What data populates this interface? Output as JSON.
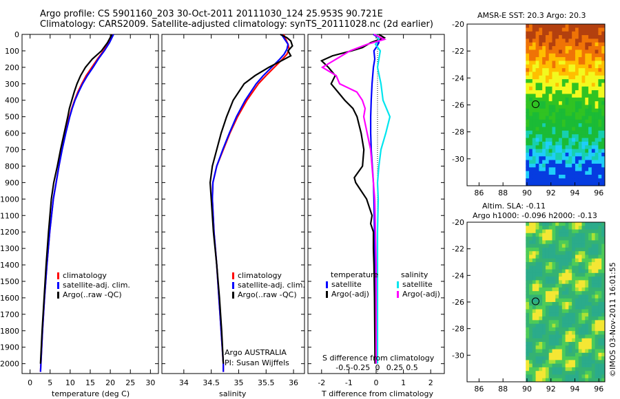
{
  "header": {
    "line1": "Argo profile: CS 5901160_203 30-Oct-2011 20111030_124 25.953S 90.721E",
    "line2": "Climatology: CARS2009. Satellite-adjusted climatology: synTS_20111028.nc (2d earlier)"
  },
  "colors": {
    "clim": "#ff0000",
    "sat": "#0000ff",
    "argo": "#000000",
    "sat_s": "#00e5ee",
    "argo_s": "#ff00ff"
  },
  "chart_data": [
    {
      "type": "line",
      "id": "temperature",
      "xlabel": "temperature (deg C)",
      "xlim": [
        -2,
        32
      ],
      "ylim": [
        2060,
        0
      ],
      "xticks": [
        0,
        5,
        10,
        15,
        20,
        25,
        30
      ],
      "yticks": [
        0,
        100,
        200,
        300,
        400,
        500,
        600,
        700,
        800,
        900,
        1000,
        1100,
        1200,
        1300,
        1400,
        1500,
        1600,
        1700,
        1800,
        1900,
        2000
      ],
      "legend": [
        "climatology",
        "satellite-adj. clim.",
        "Argo(..raw -QC)"
      ],
      "series": [
        {
          "name": "climatology",
          "color": "#ff0000",
          "depth": [
            0,
            50,
            100,
            150,
            200,
            250,
            300,
            350,
            400,
            450,
            500,
            600,
            700,
            800,
            900,
            1000,
            1200,
            1400,
            1600,
            1800,
            2000,
            2050
          ],
          "values": [
            20.5,
            19.6,
            18.3,
            16.8,
            15.4,
            14.0,
            12.9,
            11.9,
            11.1,
            10.4,
            9.8,
            8.8,
            7.9,
            7.2,
            6.5,
            5.8,
            4.9,
            4.2,
            3.6,
            3.1,
            2.7,
            2.6
          ]
        },
        {
          "name": "satellite-adj. clim.",
          "color": "#0000ff",
          "depth": [
            0,
            50,
            100,
            150,
            200,
            250,
            300,
            350,
            400,
            450,
            500,
            600,
            700,
            800,
            900,
            1000,
            1200,
            1400,
            1600,
            1800,
            2000,
            2050
          ],
          "values": [
            20.8,
            19.8,
            18.5,
            17.0,
            15.7,
            14.3,
            13.1,
            12.1,
            11.2,
            10.5,
            9.9,
            8.9,
            8.0,
            7.2,
            6.5,
            5.8,
            4.9,
            4.2,
            3.6,
            3.1,
            2.7,
            2.6
          ]
        },
        {
          "name": "Argo(..raw -QC)",
          "color": "#000000",
          "depth": [
            0,
            50,
            100,
            150,
            200,
            250,
            300,
            350,
            400,
            450,
            500,
            600,
            700,
            800,
            900,
            1000,
            1200,
            1400,
            1600,
            1800,
            2000
          ],
          "values": [
            20.4,
            19.3,
            17.8,
            15.5,
            13.8,
            12.6,
            11.7,
            11.0,
            10.4,
            9.8,
            9.4,
            8.5,
            7.6,
            6.8,
            5.9,
            5.3,
            4.6,
            4.0,
            3.5,
            3.0,
            2.6
          ]
        }
      ]
    },
    {
      "type": "line",
      "id": "salinity",
      "xlabel": "salinity",
      "xlim": [
        33.6,
        36.2
      ],
      "ylim": [
        2060,
        0
      ],
      "xticks": [
        34,
        34.5,
        35,
        35.5,
        36
      ],
      "legend": [
        "climatology",
        "satellite-adj. clim.",
        "Argo(..raw -QC)"
      ],
      "series": [
        {
          "name": "climatology",
          "color": "#ff0000",
          "depth": [
            0,
            30,
            60,
            90,
            120,
            150,
            200,
            250,
            300,
            400,
            500,
            600,
            700,
            800,
            900,
            1000,
            1200,
            1400,
            1600,
            1800,
            2000,
            2050
          ],
          "values": [
            35.82,
            35.86,
            35.9,
            35.92,
            35.88,
            35.8,
            35.65,
            35.5,
            35.36,
            35.15,
            34.98,
            34.84,
            34.72,
            34.6,
            34.53,
            34.52,
            34.55,
            34.6,
            34.64,
            34.68,
            34.72,
            34.72
          ]
        },
        {
          "name": "satellite-adj. clim.",
          "color": "#0000ff",
          "depth": [
            0,
            30,
            60,
            90,
            120,
            150,
            200,
            250,
            300,
            400,
            500,
            600,
            700,
            800,
            900,
            1000,
            1200,
            1400,
            1600,
            1800,
            2000,
            2050
          ],
          "values": [
            35.78,
            35.84,
            35.9,
            35.88,
            35.83,
            35.75,
            35.6,
            35.45,
            35.32,
            35.12,
            34.96,
            34.83,
            34.71,
            34.6,
            34.53,
            34.52,
            34.55,
            34.6,
            34.64,
            34.68,
            34.72,
            34.72
          ]
        },
        {
          "name": "Argo(..raw -QC)",
          "color": "#000000",
          "depth": [
            0,
            20,
            40,
            70,
            100,
            130,
            160,
            200,
            250,
            300,
            400,
            500,
            600,
            700,
            800,
            900,
            1000,
            1200,
            1400,
            1600,
            1800,
            2000
          ],
          "values": [
            35.76,
            35.88,
            35.95,
            35.98,
            35.9,
            35.95,
            35.78,
            35.55,
            35.3,
            35.1,
            34.9,
            34.78,
            34.68,
            34.6,
            34.52,
            34.48,
            34.5,
            34.54,
            34.6,
            34.65,
            34.69,
            34.72
          ]
        }
      ],
      "annotation": [
        "Argo AUSTRALIA",
        "PI: Susan Wijffels"
      ]
    },
    {
      "type": "line",
      "id": "difference",
      "xlabel": "T difference from climatology",
      "xlabel_top": "S difference from climatology",
      "xlim": [
        -2.5,
        2.5
      ],
      "ylim": [
        2060,
        0
      ],
      "xticks": [
        -2,
        -1,
        0,
        1,
        2
      ],
      "xticks_s": [
        -0.5,
        -0.25,
        0,
        0.25,
        0.5
      ],
      "legend_titles": [
        "temperature",
        "salinity"
      ],
      "legend": [
        "satellite",
        "Argo(-adj)",
        "satellite",
        "Argo(-adj)"
      ],
      "series": [
        {
          "name": "temperature satellite",
          "color": "#0000ff",
          "depth": [
            0,
            20,
            50,
            80,
            100,
            150,
            200,
            300,
            400,
            500,
            600,
            700,
            800,
            900,
            1000,
            1200,
            1400,
            1600,
            1800,
            2000
          ],
          "values": [
            -0.1,
            0.08,
            0.1,
            0.0,
            -0.08,
            -0.05,
            -0.1,
            -0.15,
            -0.18,
            -0.2,
            -0.2,
            -0.18,
            -0.14,
            -0.1,
            -0.08,
            -0.06,
            -0.05,
            -0.04,
            -0.03,
            -0.02
          ]
        },
        {
          "name": "temperature Argo(-adj)",
          "color": "#000000",
          "depth": [
            0,
            20,
            50,
            80,
            100,
            130,
            160,
            200,
            250,
            300,
            350,
            400,
            450,
            500,
            600,
            700,
            800,
            870,
            900,
            950,
            1000,
            1050,
            1100,
            1150,
            1200,
            1300,
            1400,
            1600,
            1800,
            2000
          ],
          "values": [
            0.1,
            0.3,
            -0.2,
            -0.5,
            -0.9,
            -1.6,
            -2.0,
            -1.75,
            -1.5,
            -1.65,
            -1.4,
            -1.15,
            -0.85,
            -0.7,
            -0.55,
            -0.45,
            -0.5,
            -0.8,
            -0.75,
            -0.55,
            -0.35,
            -0.25,
            -0.15,
            -0.2,
            -0.1,
            -0.1,
            -0.08,
            -0.06,
            -0.05,
            -0.04
          ]
        },
        {
          "name": "salinity satellite",
          "color": "#00e5ee",
          "depth": [
            0,
            30,
            60,
            100,
            150,
            200,
            300,
            400,
            500,
            600,
            700,
            800,
            900,
            1000,
            1200,
            1400,
            1600,
            1800,
            2000
          ],
          "values": [
            -0.02,
            0.02,
            -0.03,
            0.04,
            0.02,
            0.0,
            0.05,
            0.08,
            0.18,
            0.12,
            0.05,
            0.02,
            0.0,
            0.01,
            0.0,
            0.0,
            0.0,
            0.0,
            0.0
          ]
        },
        {
          "name": "salinity Argo(-adj)",
          "color": "#ff00ff",
          "depth": [
            0,
            30,
            60,
            100,
            150,
            200,
            250,
            300,
            350,
            400,
            450,
            500,
            600,
            700,
            800,
            900,
            1000,
            1200,
            1400,
            1600,
            1800,
            2000
          ],
          "values": [
            -0.05,
            0.1,
            -0.15,
            -0.4,
            -0.6,
            -0.8,
            -0.6,
            -0.55,
            -0.3,
            -0.22,
            -0.18,
            -0.2,
            -0.15,
            -0.1,
            -0.08,
            -0.06,
            -0.04,
            -0.03,
            -0.02,
            -0.02,
            -0.02,
            -0.02
          ]
        }
      ]
    },
    {
      "type": "heatmap",
      "id": "sst-map",
      "title": "AMSR-E SST: 20.3  Argo: 20.3",
      "xticks": [
        86,
        88,
        90,
        92,
        94,
        96
      ],
      "yticks": [
        -20,
        -22,
        -24,
        -26,
        -28,
        -30
      ],
      "xlim": [
        85,
        96.5
      ],
      "ylim": [
        -32,
        -20
      ],
      "marker": {
        "lon": 90.72,
        "lat": -25.95
      }
    },
    {
      "type": "heatmap",
      "id": "sla-map",
      "title_lines": [
        "Altim. SLA: -0.11",
        "Argo h1000: -0.096  h2000: -0.13"
      ],
      "xticks": [
        86,
        88,
        90,
        92,
        94,
        96
      ],
      "yticks": [
        -20,
        -22,
        -24,
        -26,
        -28,
        -30
      ],
      "xlim": [
        85,
        96.5
      ],
      "ylim": [
        -32,
        -20
      ],
      "marker": {
        "lon": 90.72,
        "lat": -25.95
      }
    }
  ],
  "footer": {
    "stamp": "©IMOS 03-Nov-2011 16:01:55"
  }
}
